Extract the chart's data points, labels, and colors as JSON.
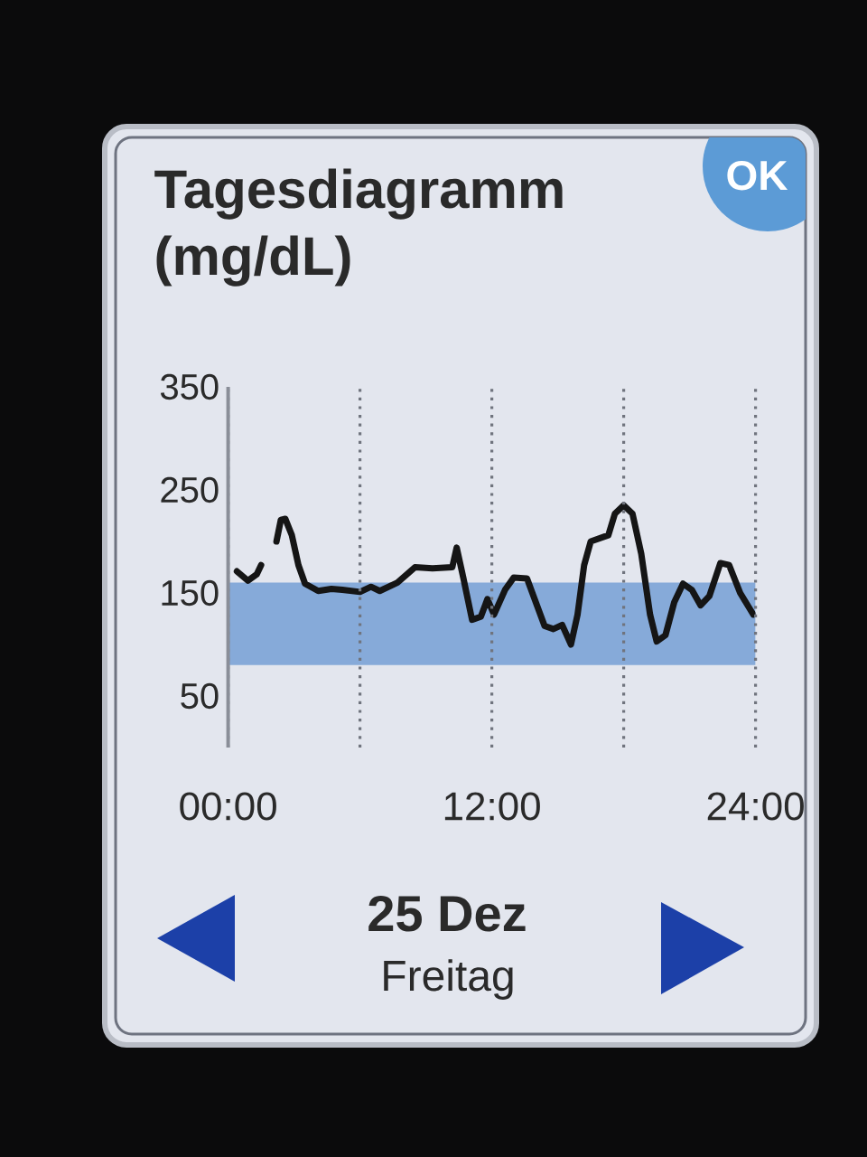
{
  "chart_data": {
    "type": "line",
    "title": "Tagesdiagramm (mg/dL)",
    "x": [
      0.4,
      0.9,
      1.3,
      1.5,
      1.9,
      2.2,
      2.4,
      2.6,
      2.9,
      3.2,
      3.5,
      4.1,
      4.7,
      5.2,
      6.0,
      6.5,
      6.9,
      7.7,
      8.5,
      9.3,
      10.2,
      10.4,
      10.7,
      11.1,
      11.5,
      11.8,
      12.1,
      12.6,
      13.0,
      13.6,
      14.0,
      14.4,
      14.8,
      15.2,
      15.6,
      15.9,
      16.2,
      16.5,
      16.9,
      17.3,
      17.6,
      18.0,
      18.4,
      18.8,
      19.2,
      19.5,
      19.9,
      20.3,
      20.7,
      21.1,
      21.5,
      21.9,
      22.4,
      22.8,
      23.3,
      23.9
    ],
    "values": [
      171,
      162,
      168,
      177,
      null,
      200,
      221,
      222,
      206,
      177,
      159,
      152,
      154,
      153,
      151,
      156,
      152,
      160,
      175,
      174,
      175,
      194,
      165,
      124,
      127,
      144,
      129,
      153,
      165,
      164,
      141,
      118,
      115,
      119,
      100,
      129,
      177,
      200,
      203,
      206,
      227,
      235,
      227,
      188,
      129,
      103,
      109,
      141,
      159,
      153,
      138,
      147,
      179,
      177,
      150,
      129
    ],
    "color": "#151515",
    "xlim": [
      0,
      24
    ],
    "xticks": [
      {
        "value": 0,
        "label": "00:00"
      },
      {
        "value": 6,
        "label": null
      },
      {
        "value": 12,
        "label": "12:00"
      },
      {
        "value": 18,
        "label": null
      },
      {
        "value": 24,
        "label": "24:00"
      }
    ],
    "ylim": [
      0,
      350
    ],
    "yticks": [
      50,
      150,
      250,
      350
    ],
    "grid": "x",
    "line_style": "solid",
    "bands": [
      {
        "axis": "y",
        "from": 80,
        "to": 160,
        "color": "#86aad9"
      }
    ],
    "annotations": [
      "OK",
      "25 Dez",
      "Freitag"
    ]
  }
}
